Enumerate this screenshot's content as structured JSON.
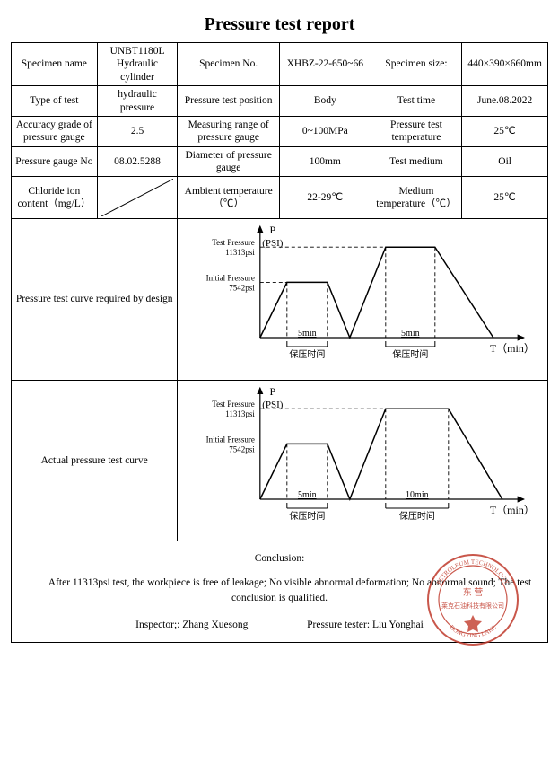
{
  "title": "Pressure test report",
  "rows": [
    [
      "Specimen name",
      "UNBT1180L Hydraulic cylinder",
      "Specimen No.",
      "XHBZ-22-650~66",
      "Specimen size:",
      "440×390×660mm"
    ],
    [
      "Type of test",
      "hydraulic pressure",
      "Pressure test position",
      "Body",
      "Test time",
      "June.08.2022"
    ],
    [
      "Accuracy grade of pressure gauge",
      "2.5",
      "Measuring range of pressure gauge",
      "0~100MPa",
      "Pressure test temperature",
      "25℃"
    ],
    [
      "Pressure gauge No",
      "08.02.5288",
      "Diameter of pressure gauge",
      "100mm",
      "Test medium",
      "Oil"
    ],
    [
      "Chloride ion content（mg/L）",
      "",
      "Ambient temperature（℃）",
      "22-29℃",
      "Medium temperature（℃）",
      "25℃"
    ]
  ],
  "charts": [
    {
      "label": "Pressure test curve required by design",
      "y_axis_label": "P",
      "y_axis_unit": "(PSI)",
      "x_axis_label": "T（min）",
      "y_ticks": [
        {
          "label1": "Test  Pressure",
          "label2": "11313psi",
          "value": 11313
        },
        {
          "label1": "Initial Pressure",
          "label2": "7542psi",
          "value": 7542
        }
      ],
      "holds": [
        {
          "duration_label": "5min",
          "hold_text": "保压时间"
        },
        {
          "duration_label": "5min",
          "hold_text": "保压时间"
        }
      ],
      "colors": {
        "axis": "#000000",
        "line": "#000000",
        "dash": "#000000"
      },
      "line_width": 1.2,
      "profile_points": [
        [
          0,
          0
        ],
        [
          30,
          55
        ],
        [
          75,
          55
        ],
        [
          100,
          0
        ],
        [
          140,
          90
        ],
        [
          195,
          90
        ],
        [
          260,
          0
        ]
      ]
    },
    {
      "label": "Actual pressure test curve",
      "y_axis_label": "P",
      "y_axis_unit": "(PSI)",
      "x_axis_label": "T（min）",
      "y_ticks": [
        {
          "label1": "Test  Pressure",
          "label2": "11313psi",
          "value": 11313
        },
        {
          "label1": "Initial Pressure",
          "label2": "7542psi",
          "value": 7542
        }
      ],
      "holds": [
        {
          "duration_label": "5min",
          "hold_text": "保压时间"
        },
        {
          "duration_label": "10min",
          "hold_text": "保压时间"
        }
      ],
      "colors": {
        "axis": "#000000",
        "line": "#000000",
        "dash": "#000000"
      },
      "line_width": 1.2,
      "profile_points": [
        [
          0,
          0
        ],
        [
          30,
          55
        ],
        [
          75,
          55
        ],
        [
          100,
          0
        ],
        [
          140,
          90
        ],
        [
          210,
          90
        ],
        [
          270,
          0
        ]
      ]
    }
  ],
  "conclusion": {
    "heading": "Conclusion:",
    "body": "After 11313psi test, the workpiece is free of leakage; No visible abnormal deformation; No abnormal sound; The test conclusion is qualified.",
    "inspector_label": "Inspector;: Zhang Xuesong",
    "tester_label": "Pressure tester: Liu Yonghai"
  },
  "stamp": {
    "text_top": "PETROLEUM TECHNOLOGY",
    "text_bottom": "DONGYING LAKE",
    "center1": "东 营",
    "center2": "莱克石油科技有限公司",
    "color": "#c0392b"
  }
}
